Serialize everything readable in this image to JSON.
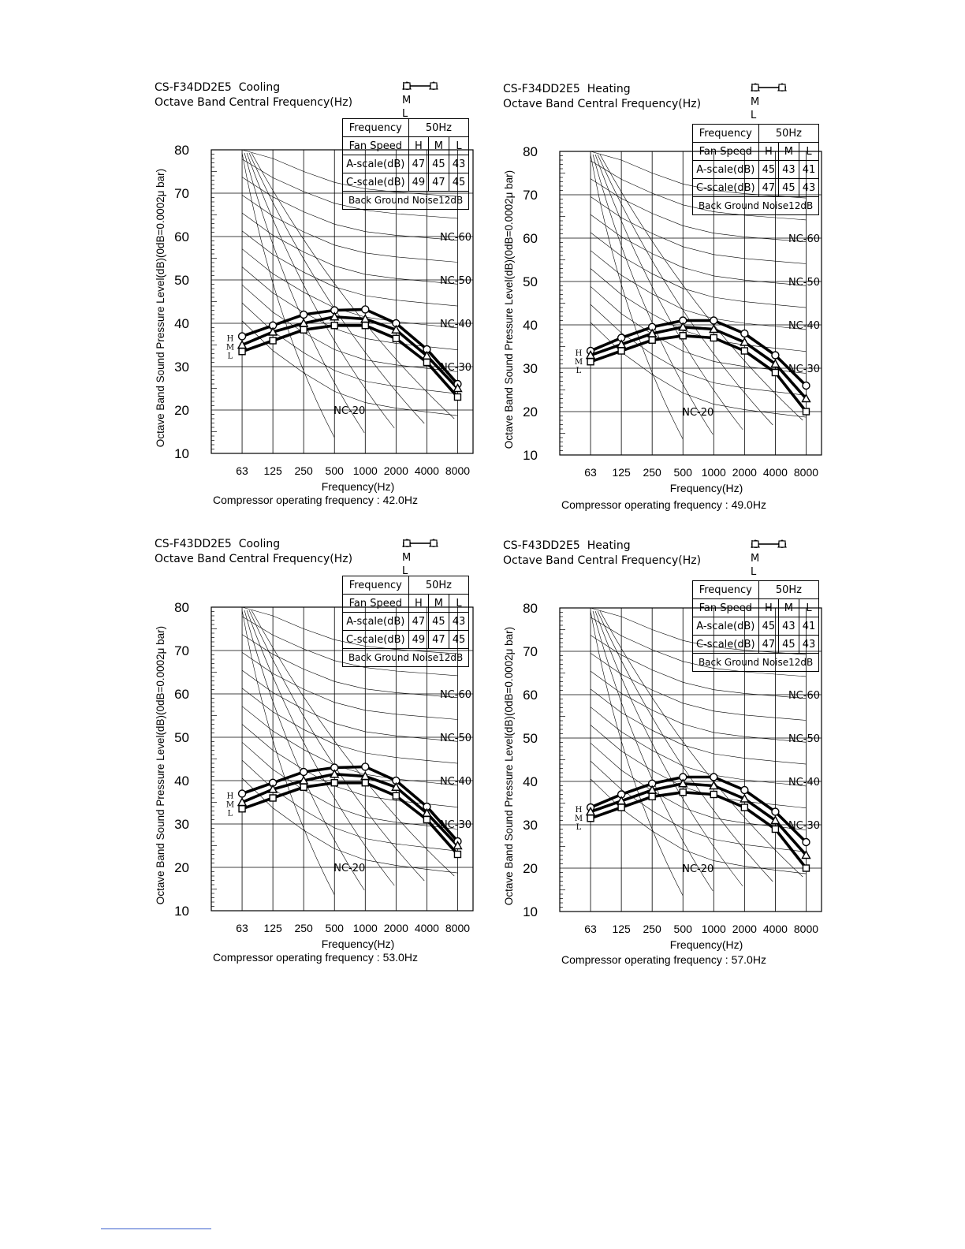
{
  "panels": [
    {
      "model": "CS-F34DD2E5",
      "mode": "Cooling",
      "subtitle": "Octave Band Central Frequency(Hz)",
      "legend": [
        {
          "key": "H",
          "symbol": "circle"
        },
        {
          "key": "M",
          "symbol": "triangle"
        },
        {
          "key": "L",
          "symbol": "square"
        }
      ],
      "table": {
        "frequency_label": "Frequency",
        "frequency_value": "50Hz",
        "fan_speed_label": "Fan Speed",
        "fan_h": "H",
        "fan_m": "M",
        "fan_l": "L",
        "a_label": "A-scale(dB)",
        "a_h": "47",
        "a_m": "45",
        "a_l": "43",
        "c_label": "C-scale(dB)",
        "c_h": "49",
        "c_m": "47",
        "c_l": "45",
        "bg_noise": "Back Ground Noise12dB"
      },
      "compressor": "Compressor operating frequency : 42.0Hz"
    },
    {
      "model": "CS-F34DD2E5",
      "mode": "Heating",
      "subtitle": "Octave Band Central Frequency(Hz)",
      "legend": [
        {
          "key": "H",
          "symbol": "circle"
        },
        {
          "key": "M",
          "symbol": "triangle"
        },
        {
          "key": "L",
          "symbol": "square"
        }
      ],
      "table": {
        "frequency_label": "Frequency",
        "frequency_value": "50Hz",
        "fan_speed_label": "Fan Speed",
        "fan_h": "H",
        "fan_m": "M",
        "fan_l": "L",
        "a_label": "A-scale(dB)",
        "a_h": "45",
        "a_m": "43",
        "a_l": "41",
        "c_label": "C-scale(dB)",
        "c_h": "47",
        "c_m": "45",
        "c_l": "43",
        "bg_noise": "Back Ground Noise12dB"
      },
      "compressor": "Compressor operating frequency : 49.0Hz"
    },
    {
      "model": "CS-F43DD2E5",
      "mode": "Cooling",
      "subtitle": "Octave Band Central Frequency(Hz)",
      "legend": [
        {
          "key": "H",
          "symbol": "circle"
        },
        {
          "key": "M",
          "symbol": "triangle"
        },
        {
          "key": "L",
          "symbol": "square"
        }
      ],
      "table": {
        "frequency_label": "Frequency",
        "frequency_value": "50Hz",
        "fan_speed_label": "Fan Speed",
        "fan_h": "H",
        "fan_m": "M",
        "fan_l": "L",
        "a_label": "A-scale(dB)",
        "a_h": "47",
        "a_m": "45",
        "a_l": "43",
        "c_label": "C-scale(dB)",
        "c_h": "49",
        "c_m": "47",
        "c_l": "45",
        "bg_noise": "Back Ground Noise12dB"
      },
      "compressor": "Compressor operating frequency : 53.0Hz"
    },
    {
      "model": "CS-F43DD2E5",
      "mode": "Heating",
      "subtitle": "Octave Band Central Frequency(Hz)",
      "legend": [
        {
          "key": "H",
          "symbol": "circle"
        },
        {
          "key": "M",
          "symbol": "triangle"
        },
        {
          "key": "L",
          "symbol": "square"
        }
      ],
      "table": {
        "frequency_label": "Frequency",
        "frequency_value": "50Hz",
        "fan_speed_label": "Fan Speed",
        "fan_h": "H",
        "fan_m": "M",
        "fan_l": "L",
        "a_label": "A-scale(dB)",
        "a_h": "45",
        "a_m": "43",
        "a_l": "41",
        "c_label": "C-scale(dB)",
        "c_h": "47",
        "c_m": "45",
        "c_l": "43",
        "bg_noise": "Back Ground Noise12dB"
      },
      "compressor": "Compressor operating frequency : 57.0Hz"
    }
  ],
  "chart_data": [
    {
      "type": "line",
      "title": "CS-F34DD2E5  Cooling",
      "xlabel": "Frequency(Hz)",
      "ylabel": "Octave Band Sound Pressure Level(dB)(0dB=0.0002μ bar)",
      "categories": [
        "63",
        "125",
        "250",
        "500",
        "1000",
        "2000",
        "4000",
        "8000"
      ],
      "yticks": [
        10,
        20,
        30,
        40,
        50,
        60,
        70,
        80
      ],
      "ylim": [
        10,
        80
      ],
      "nc_labels": [
        "NC-60",
        "NC-50",
        "NC-40",
        "NC-30",
        "NC-20"
      ],
      "series": [
        {
          "name": "H",
          "marker": "circle",
          "values": [
            37,
            39.5,
            42,
            43,
            43.2,
            40,
            34,
            26
          ]
        },
        {
          "name": "M",
          "marker": "triangle",
          "values": [
            35,
            38,
            40,
            41.5,
            41,
            38.5,
            32.5,
            25
          ]
        },
        {
          "name": "L",
          "marker": "square",
          "values": [
            33.5,
            36,
            38.5,
            39.5,
            39.5,
            36.5,
            31,
            23
          ]
        }
      ]
    },
    {
      "type": "line",
      "title": "CS-F34DD2E5  Heating",
      "xlabel": "Frequency(Hz)",
      "ylabel": "Octave Band Sound Pressure Level(dB)(0dB=0.0002μ bar)",
      "categories": [
        "63",
        "125",
        "250",
        "500",
        "1000",
        "2000",
        "4000",
        "8000"
      ],
      "yticks": [
        10,
        20,
        30,
        40,
        50,
        60,
        70,
        80
      ],
      "ylim": [
        10,
        80
      ],
      "nc_labels": [
        "NC-60",
        "NC-50",
        "NC-40",
        "NC-30",
        "NC-20"
      ],
      "series": [
        {
          "name": "H",
          "marker": "circle",
          "values": [
            34,
            37,
            39.5,
            41,
            41,
            38,
            33,
            26
          ]
        },
        {
          "name": "M",
          "marker": "triangle",
          "values": [
            33,
            35.5,
            38,
            39.5,
            39,
            36,
            31,
            23
          ]
        },
        {
          "name": "L",
          "marker": "square",
          "values": [
            31.5,
            34,
            36.5,
            37.5,
            37,
            34,
            29,
            20
          ]
        }
      ]
    },
    {
      "type": "line",
      "title": "CS-F43DD2E5  Cooling",
      "xlabel": "Frequency(Hz)",
      "ylabel": "Octave Band Sound Pressure Level(dB)(0dB=0.0002μ bar)",
      "categories": [
        "63",
        "125",
        "250",
        "500",
        "1000",
        "2000",
        "4000",
        "8000"
      ],
      "yticks": [
        10,
        20,
        30,
        40,
        50,
        60,
        70,
        80
      ],
      "ylim": [
        10,
        80
      ],
      "nc_labels": [
        "NC-60",
        "NC-50",
        "NC-40",
        "NC-30",
        "NC-20"
      ],
      "series": [
        {
          "name": "H",
          "marker": "circle",
          "values": [
            37,
            39.5,
            42,
            43,
            43.2,
            40,
            34,
            26
          ]
        },
        {
          "name": "M",
          "marker": "triangle",
          "values": [
            35,
            38,
            40,
            41.5,
            41,
            38.5,
            32.5,
            25
          ]
        },
        {
          "name": "L",
          "marker": "square",
          "values": [
            33.5,
            36,
            38.5,
            39.5,
            39.5,
            36.5,
            31,
            23
          ]
        }
      ]
    },
    {
      "type": "line",
      "title": "CS-F43DD2E5  Heating",
      "xlabel": "Frequency(Hz)",
      "ylabel": "Octave Band Sound Pressure Level(dB)(0dB=0.0002μ bar)",
      "categories": [
        "63",
        "125",
        "250",
        "500",
        "1000",
        "2000",
        "4000",
        "8000"
      ],
      "yticks": [
        10,
        20,
        30,
        40,
        50,
        60,
        70,
        80
      ],
      "ylim": [
        10,
        80
      ],
      "nc_labels": [
        "NC-60",
        "NC-50",
        "NC-40",
        "NC-30",
        "NC-20"
      ],
      "series": [
        {
          "name": "H",
          "marker": "circle",
          "values": [
            34,
            37,
            39.5,
            41,
            41,
            38,
            33,
            26
          ]
        },
        {
          "name": "M",
          "marker": "triangle",
          "values": [
            33,
            35.5,
            38,
            39.5,
            39,
            36,
            31,
            23
          ]
        },
        {
          "name": "L",
          "marker": "square",
          "values": [
            31.5,
            34,
            36.5,
            37.5,
            37,
            34,
            29,
            20
          ]
        }
      ]
    }
  ]
}
